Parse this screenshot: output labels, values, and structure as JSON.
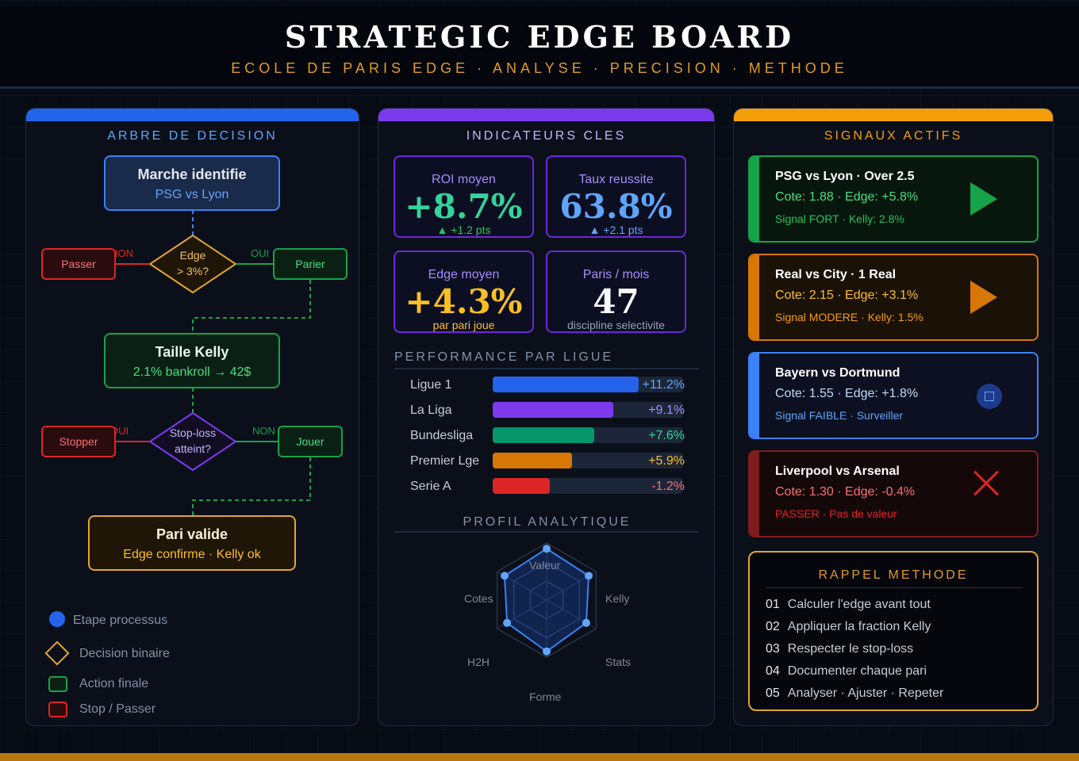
{
  "header": {
    "title": "STRATEGIC EDGE BOARD",
    "subtitle": "ECOLE DE PARIS EDGE · ANALYSE · PRECISION · METHODE"
  },
  "colors": {
    "blue": "#2563eb",
    "purple": "#7c3aed",
    "orange": "#f59e0b",
    "green": "#16a34a",
    "red": "#dc2626",
    "background": "#070b13"
  },
  "decision_tree": {
    "title": "ARBRE DE DECISION",
    "start": {
      "title": "Marche identifie",
      "sub": "PSG vs Lyon"
    },
    "diamond1": {
      "line1": "Edge",
      "line2": "> 3%?"
    },
    "no1_label": "NON",
    "yes1_label": "OUI",
    "pass_label": "Passer",
    "bet_label": "Parier",
    "kelly": {
      "title": "Taille Kelly",
      "sub": "2.1% bankroll → 42$"
    },
    "diamond2": {
      "line1": "Stop-loss",
      "line2": "atteint?"
    },
    "yes2_label": "OUI",
    "no2_label": "NON",
    "stop_label": "Stopper",
    "play_label": "Jouer",
    "final": {
      "title": "Pari valide",
      "sub": "Edge confirme · Kelly ok"
    },
    "legend": [
      {
        "label": "Etape processus",
        "icon": "circle-icon"
      },
      {
        "label": "Decision binaire",
        "icon": "diamond-icon"
      },
      {
        "label": "Action finale",
        "icon": "green-square-icon"
      },
      {
        "label": "Stop / Passer",
        "icon": "red-square-icon"
      }
    ]
  },
  "indicators": {
    "title": "INDICATEURS CLES",
    "kpis": [
      {
        "label": "ROI moyen",
        "value": "+8.7%",
        "sub": "▲ +1.2 pts",
        "label_color": "#a78bfa",
        "value_color": "#34d399",
        "sub_color": "#22c55e"
      },
      {
        "label": "Taux reussite",
        "value": "63.8%",
        "sub": "▲ +2.1 pts",
        "label_color": "#a78bfa",
        "value_color": "#60a5fa",
        "sub_color": "#60a5fa"
      },
      {
        "label": "Edge moyen",
        "value": "+4.3%",
        "sub": "par pari joue",
        "label_color": "#a78bfa",
        "value_color": "#fbbf24",
        "sub_color": "#fbbf24"
      },
      {
        "label": "Paris / mois",
        "value": "47",
        "sub": "discipline selectivite",
        "label_color": "#a78bfa",
        "value_color": "#f8fafc",
        "sub_color": "#94a3b8"
      }
    ],
    "league_title": "PERFORMANCE PAR LIGUE",
    "leagues": [
      {
        "name": "Ligue 1",
        "value": "+11.2%",
        "fill": 0.767,
        "color": "#2563eb",
        "text_color": "#60a5fa"
      },
      {
        "name": "La Liga",
        "value": "+9.1%",
        "fill": 0.633,
        "color": "#7c3aed",
        "text_color": "#a78bfa"
      },
      {
        "name": "Bundesliga",
        "value": "+7.6%",
        "fill": 0.533,
        "color": "#059669",
        "text_color": "#34d399"
      },
      {
        "name": "Premier Lge",
        "value": "+5.9%",
        "fill": 0.417,
        "color": "#d97706",
        "text_color": "#fbbf24"
      },
      {
        "name": "Serie A",
        "value": "-1.2%",
        "fill": 0.3,
        "color": "#dc2626",
        "text_color": "#f87171"
      }
    ],
    "radar_title": "PROFIL ANALYTIQUE",
    "radar": {
      "axes": [
        "Valeur",
        "Kelly",
        "Stats",
        "Forme",
        "H2H",
        "Cotes"
      ],
      "values": [
        0.9,
        0.85,
        0.8,
        0.9,
        0.8,
        0.85
      ]
    }
  },
  "signals": {
    "title": "SIGNAUX ACTIFS",
    "items": [
      {
        "title": "PSG vs Lyon · Over 2.5",
        "quote": "Cote: 1.88 · Edge: +5.8%",
        "status": "Signal FORT · Kelly: 2.8%",
        "icon": "play-icon",
        "border": "#16a34a",
        "bg": "#07170d",
        "quote_color": "#4ade80",
        "status_color": "#22c55e"
      },
      {
        "title": "Real vs City · 1 Real",
        "quote": "Cote: 2.15 · Edge: +3.1%",
        "status": "Signal MODERE · Kelly: 1.5%",
        "icon": "play-icon",
        "border": "#d97706",
        "bg": "#1a1107",
        "quote_color": "#fbbf24",
        "status_color": "#f59e0b"
      },
      {
        "title": "Bayern vs Dortmund",
        "quote": "Cote: 1.55 · Edge: +1.8%",
        "status": "Signal FAIBLE · Surveiller",
        "icon": "watch-icon",
        "border": "#3b82f6",
        "bg": "#0c1020",
        "quote_color": "#bfdbfe",
        "status_color": "#60a5fa"
      },
      {
        "title": "Liverpool vs Arsenal",
        "quote": "Cote: 1.30 · Edge: -0.4%",
        "status": "PASSER · Pas de valeur",
        "icon": "close-icon",
        "border": "#7f1d1d",
        "bg": "#150809",
        "quote_color": "#f87171",
        "status_color": "#dc2626"
      }
    ],
    "rappel_title": "RAPPEL METHODE",
    "rappel": [
      {
        "num": "01",
        "text": "Calculer l'edge avant tout"
      },
      {
        "num": "02",
        "text": "Appliquer la fraction Kelly"
      },
      {
        "num": "03",
        "text": "Respecter le stop-loss"
      },
      {
        "num": "04",
        "text": "Documenter chaque pari"
      },
      {
        "num": "05",
        "text": "Analyser · Ajuster · Repeter"
      }
    ]
  }
}
